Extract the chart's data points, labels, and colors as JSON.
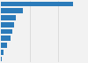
{
  "values": [
    2100,
    640,
    430,
    370,
    320,
    280,
    175,
    80,
    25
  ],
  "bar_color": "#2b7bba",
  "background_color": "#f2f2f2",
  "grid_color": "#cccccc",
  "bar_height": 0.75,
  "xlim": [
    0,
    2500
  ],
  "grid_lines": [
    833,
    1667,
    2500
  ]
}
